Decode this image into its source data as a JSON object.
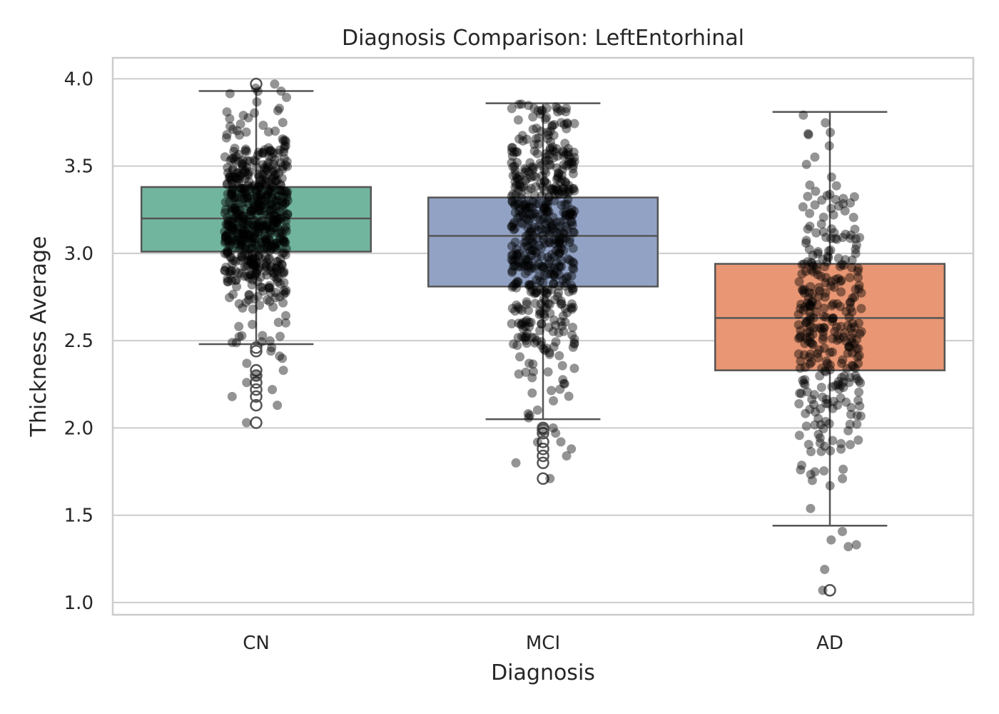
{
  "chart_data": {
    "type": "box",
    "title": "Diagnosis Comparison: LeftEntorhinal",
    "xlabel": "Diagnosis",
    "ylabel": "Thickness Average",
    "categories": [
      "CN",
      "MCI",
      "AD"
    ],
    "ylim": [
      0.93,
      4.12
    ],
    "yticks": [
      1.0,
      1.5,
      2.0,
      2.5,
      3.0,
      3.5,
      4.0
    ],
    "ytick_labels": [
      "1.0",
      "1.5",
      "2.0",
      "2.5",
      "3.0",
      "3.5",
      "4.0"
    ],
    "grid": true,
    "boxes": [
      {
        "category": "CN",
        "color": "#72b59e",
        "whisker_low": 2.48,
        "q1": 3.01,
        "median": 3.2,
        "q3": 3.38,
        "whisker_high": 3.93,
        "outliers": [
          2.03,
          2.13,
          2.18,
          2.22,
          2.26,
          2.3,
          2.33,
          2.44,
          2.46,
          3.97
        ],
        "points": {
          "count": 620,
          "center": 3.18,
          "spread": 0.27,
          "min": 2.03,
          "max": 3.97
        }
      },
      {
        "category": "MCI",
        "color": "#92a2c5",
        "whisker_low": 2.05,
        "q1": 2.81,
        "median": 3.1,
        "q3": 3.32,
        "whisker_high": 3.86,
        "outliers": [
          1.71,
          1.8,
          1.84,
          1.88,
          1.92,
          1.97,
          1.99,
          2.0
        ],
        "points": {
          "count": 560,
          "center": 3.05,
          "spread": 0.4,
          "min": 1.7,
          "max": 3.86
        }
      },
      {
        "category": "AD",
        "color": "#e89673",
        "whisker_low": 1.44,
        "q1": 2.33,
        "median": 2.63,
        "q3": 2.94,
        "whisker_high": 3.81,
        "outliers": [
          1.07
        ],
        "points": {
          "count": 330,
          "center": 2.62,
          "spread": 0.43,
          "min": 1.07,
          "max": 3.81
        }
      }
    ]
  }
}
